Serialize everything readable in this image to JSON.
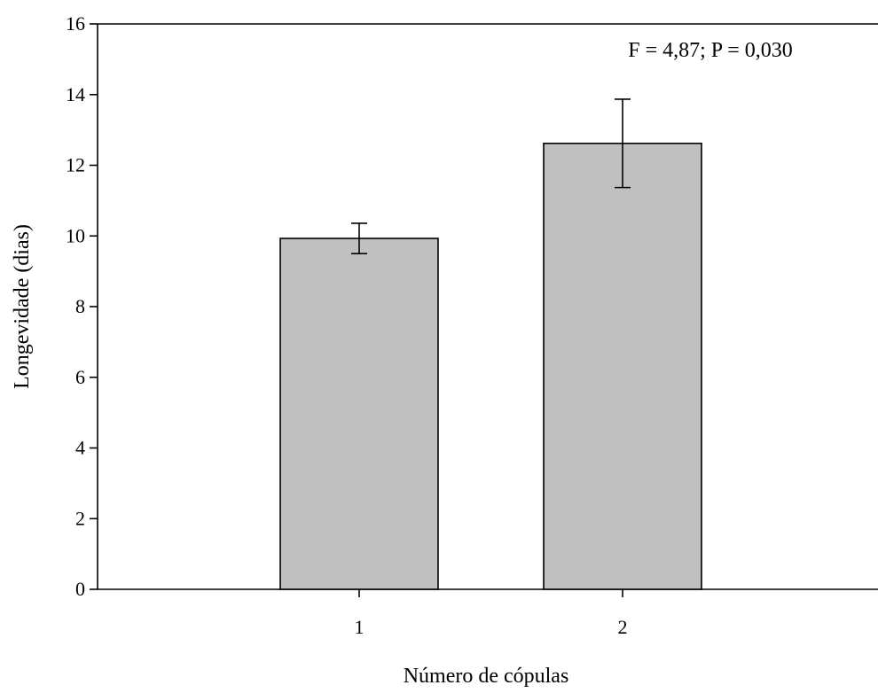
{
  "chart_data": {
    "type": "bar",
    "title": "",
    "xlabel": "Número de cópulas",
    "ylabel": "Longevidade (dias)",
    "categories": [
      "1",
      "2"
    ],
    "values": [
      9.93,
      12.62
    ],
    "errors": [
      0.43,
      1.25
    ],
    "ylim": [
      0,
      16
    ],
    "yticks": [
      0,
      2,
      4,
      6,
      8,
      10,
      12,
      14,
      16
    ],
    "annotation": "F = 4,87; P = 0,030",
    "grid": false,
    "colors": {
      "bar_fill": "#c0c0c0",
      "bar_stroke": "#000000"
    }
  }
}
